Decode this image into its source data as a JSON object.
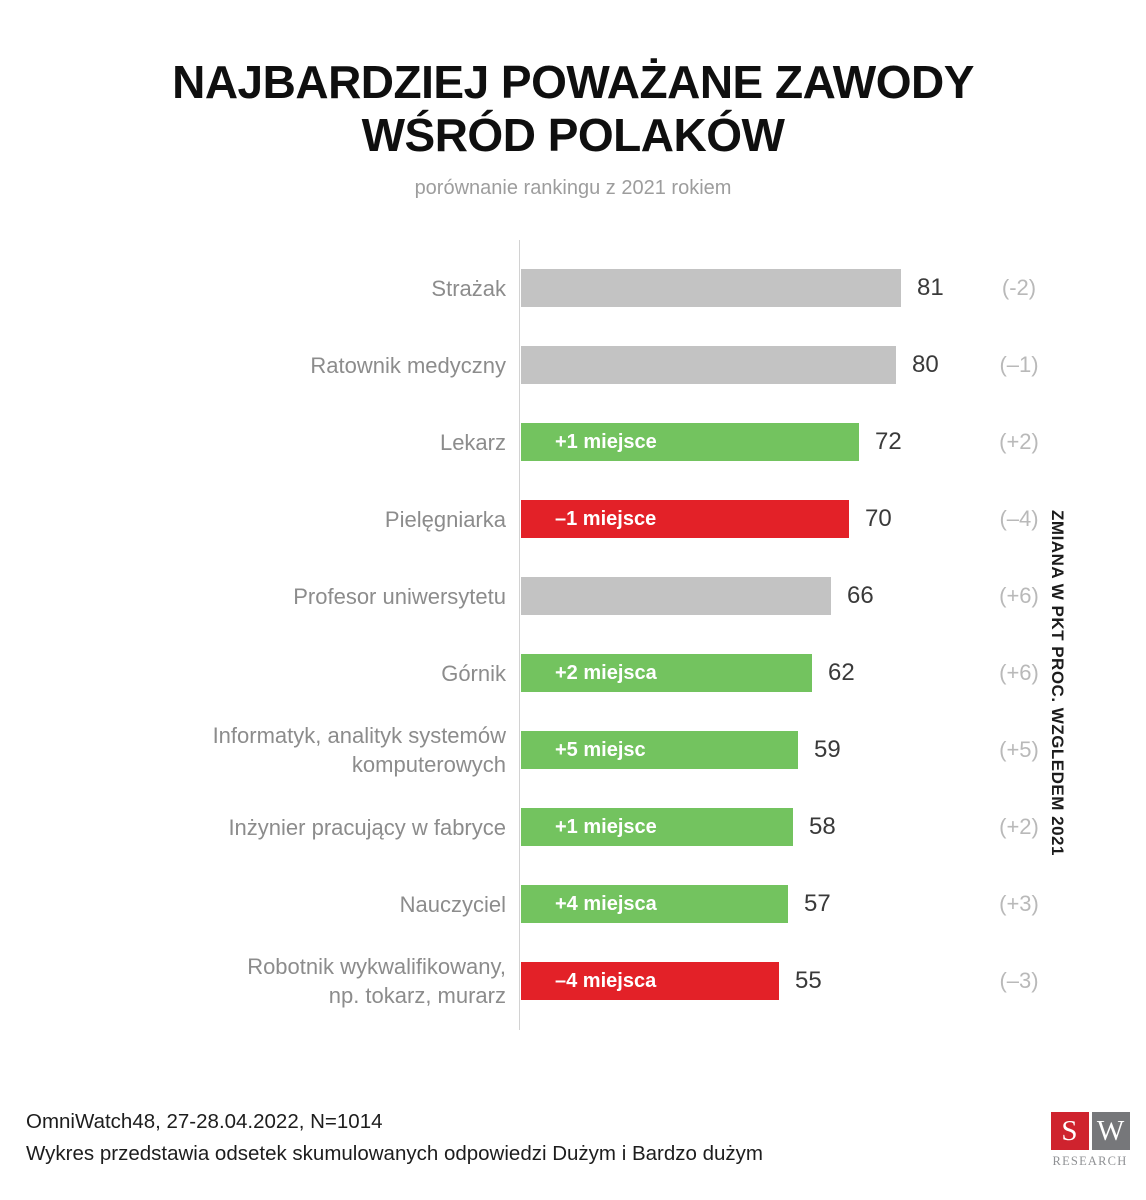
{
  "title": {
    "line1": "NAJBARDZIEJ POWAŻANE ZAWODY",
    "line2": "WŚRÓD POLAKÓW"
  },
  "subtitle": "porównanie rankingu z 2021 rokiem",
  "right_axis_label": "ZMIANA W PKT PROC. WZGLEDEM 2021",
  "footer": {
    "line1": "OmniWatch48, 27-28.04.2022, N=1014",
    "line2": "Wykres przedstawia odsetek skumulowanych odpowiedzi Dużym i Bardzo dużym"
  },
  "logo": {
    "letter1": "S",
    "letter2": "W",
    "text": "RESEARCH",
    "red": "#cf232e",
    "gray": "#76777a"
  },
  "colors": {
    "bar_gray": "#c3c3c3",
    "bar_green": "#73c35f",
    "bar_red": "#e32128",
    "axis_line": "#d2d2d2",
    "category_label": "#8c8c8c",
    "value_label": "#3a3a3a",
    "change_label": "#b9b9b9"
  },
  "chart_data": {
    "type": "bar",
    "orientation": "horizontal",
    "title": "NAJBARDZIEJ POWAŻANE ZAWODY WŚRÓD POLAKÓW",
    "subtitle": "porównanie rankingu z 2021 rokiem",
    "right_axis_label": "ZMIANA W PKT PROC. WZGLEDEM 2021",
    "value_range": [
      0,
      81
    ],
    "legend": "none",
    "grid": "off",
    "rows": [
      {
        "label": "Strażak",
        "value": 81,
        "change": "(-2)",
        "bar_color": "gray",
        "bar_label": ""
      },
      {
        "label": "Ratownik medyczny",
        "value": 80,
        "change": "(–1)",
        "bar_color": "gray",
        "bar_label": ""
      },
      {
        "label": "Lekarz",
        "value": 72,
        "change": "(+2)",
        "bar_color": "green",
        "bar_label": "+1 miejsce"
      },
      {
        "label": "Pielęgniarka",
        "value": 70,
        "change": "(–4)",
        "bar_color": "red",
        "bar_label": "–1 miejsce"
      },
      {
        "label": "Profesor uniwersytetu",
        "value": 66,
        "change": "(+6)",
        "bar_color": "gray",
        "bar_label": ""
      },
      {
        "label": "Górnik",
        "value": 62,
        "change": "(+6)",
        "bar_color": "green",
        "bar_label": "+2 miejsca"
      },
      {
        "label": "Informatyk, analityk systemów\nkomputerowych",
        "value": 59,
        "change": "(+5)",
        "bar_color": "green",
        "bar_label": "+5 miejsc"
      },
      {
        "label": "Inżynier pracujący w fabryce",
        "value": 58,
        "change": "(+2)",
        "bar_color": "green",
        "bar_label": "+1 miejsce"
      },
      {
        "label": "Nauczyciel",
        "value": 57,
        "change": "(+3)",
        "bar_color": "green",
        "bar_label": "+4 miejsca"
      },
      {
        "label": "Robotnik wykwalifikowany,\nnp. tokarz, murarz",
        "value": 55,
        "change": "(–3)",
        "bar_color": "red",
        "bar_label": "–4 miejsca"
      }
    ]
  }
}
